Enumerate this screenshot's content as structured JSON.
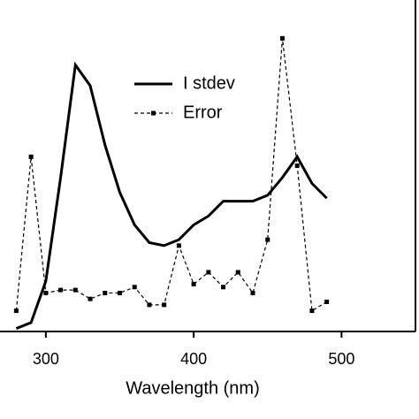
{
  "chart_data": {
    "type": "line",
    "x_label": "Wavelength (nm)",
    "x": [
      280,
      290,
      300,
      310,
      320,
      330,
      340,
      350,
      360,
      370,
      380,
      390,
      400,
      410,
      420,
      430,
      440,
      450,
      460,
      470,
      480,
      490
    ],
    "series": [
      {
        "name": "I stdev",
        "color": "#000000",
        "dash": "solid",
        "values": [
          1,
          3,
          17,
          52,
          90,
          83,
          63,
          47,
          36,
          30,
          29,
          31,
          36,
          39,
          44,
          44,
          44,
          46,
          52,
          59,
          50,
          45
        ]
      },
      {
        "name": "Error",
        "color": "#000000",
        "dash": "dashed",
        "values": [
          7,
          59,
          13,
          14,
          14,
          11,
          13,
          13,
          15,
          9,
          9,
          29,
          16,
          20,
          15,
          20,
          13,
          31,
          99,
          56,
          7,
          10
        ]
      }
    ],
    "xlim": [
      269,
      550
    ],
    "xticks": [
      300,
      400,
      500
    ],
    "ylim": [
      0,
      100
    ]
  }
}
